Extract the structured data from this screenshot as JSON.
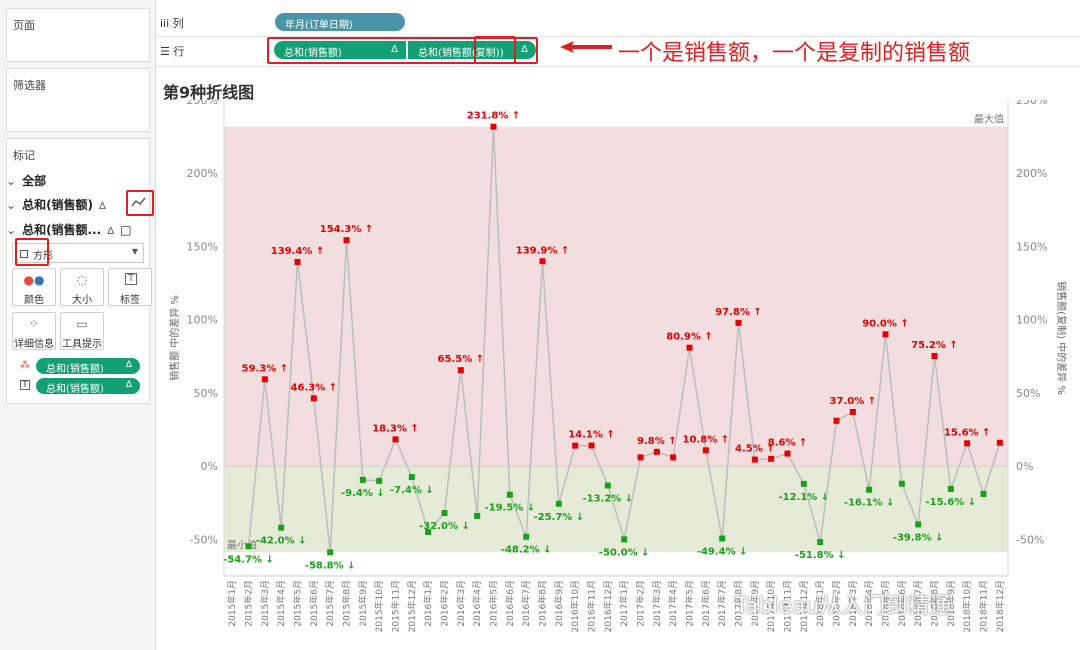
{
  "sidebar": {
    "pages_title": "页面",
    "filters_title": "筛选器",
    "marks_title": "标记",
    "all_label": "全部",
    "mark1_label": "总和(销售额)",
    "mark2_label": "总和(销售额...",
    "delta": "Δ",
    "mark_type": "方形",
    "buttons": [
      "颜色",
      "大小",
      "标签",
      "详细信息",
      "工具提示"
    ],
    "pills": [
      "总和(销售额)",
      "总和(销售额)"
    ]
  },
  "shelves": {
    "columns_label": "iii 列",
    "rows_label": "☰ 行",
    "column_pill": "年月(订单日期)",
    "row_pill1": "总和(销售额)",
    "row_pill2": "总和(销售额(复制))",
    "delta": "Δ"
  },
  "annotation": {
    "arrow_text": "一个是销售额，一个是复制的销售额",
    "color": "#e02020"
  },
  "chart_title": "第9种折线图",
  "watermark": "Tableau从入门到精通",
  "colors": {
    "positive": "#e60000",
    "negative": "#1aa01a",
    "band_positive": "#f2dede",
    "band_negative": "#e6ebd8",
    "line": "#bdbdbd"
  },
  "chart_data": {
    "type": "line",
    "ylabel_left": "销售额 中的差异 %",
    "ylabel_right": "销售额(复制) 中的差异 %",
    "ylim": [
      -75,
      250
    ],
    "yticks": [
      -50,
      0,
      50,
      100,
      150,
      200,
      250
    ],
    "ytick_labels": [
      "-50%",
      "0%",
      "50%",
      "100%",
      "150%",
      "200%",
      "250%"
    ],
    "max_label": "最大值",
    "min_label": "最小值",
    "band_max": 231.8,
    "band_min": -58.8,
    "categories": [
      "2015年1月",
      "2015年2月",
      "2015年3月",
      "2015年4月",
      "2015年5月",
      "2015年6月",
      "2015年7月",
      "2015年8月",
      "2015年9月",
      "2015年10月",
      "2015年11月",
      "2015年12月",
      "2016年1月",
      "2016年2月",
      "2016年3月",
      "2016年4月",
      "2016年5月",
      "2016年6月",
      "2016年7月",
      "2016年8月",
      "2016年9月",
      "2016年10月",
      "2016年11月",
      "2016年12月",
      "2017年1月",
      "2017年2月",
      "2017年3月",
      "2017年4月",
      "2017年5月",
      "2017年6月",
      "2017年7月",
      "2017年8月",
      "2017年9月",
      "2017年10月",
      "2017年11月",
      "2017年12月",
      "2018年1月",
      "2018年2月",
      "2018年3月",
      "2018年4月",
      "2018年5月",
      "2018年6月",
      "2018年7月",
      "2018年8月",
      "2018年9月",
      "2018年10月",
      "2018年11月",
      "2018年12月"
    ],
    "values": [
      null,
      -54.7,
      59.3,
      -42.0,
      139.4,
      46.3,
      -58.8,
      154.3,
      -9.4,
      -10.0,
      18.3,
      -7.4,
      -45.0,
      -32.0,
      65.5,
      -34.0,
      231.8,
      -19.5,
      -48.2,
      139.9,
      -25.7,
      14.0,
      14.1,
      -13.2,
      -50.0,
      6.0,
      9.8,
      6.0,
      80.9,
      10.8,
      -49.4,
      97.8,
      4.5,
      5.0,
      8.6,
      -12.1,
      -51.8,
      31.0,
      37.0,
      -16.1,
      90.0,
      -12.0,
      -39.8,
      75.2,
      -15.6,
      15.6,
      -19.0,
      16.0
    ],
    "labels": [
      null,
      "-54.7% ↓",
      "59.3% ↑",
      "-42.0% ↓",
      "139.4% ↑",
      "46.3% ↑",
      "-58.8% ↓",
      "154.3% ↑",
      "-9.4% ↓",
      null,
      "18.3% ↑",
      "-7.4% ↓",
      null,
      "-32.0% ↓",
      "65.5% ↑",
      null,
      "231.8% ↑",
      "-19.5% ↓",
      "-48.2% ↓",
      "139.9% ↑",
      "-25.7% ↓",
      null,
      "14.1% ↑",
      "-13.2% ↓",
      "-50.0% ↓",
      null,
      "9.8% ↑",
      null,
      "80.9% ↑",
      "10.8% ↑",
      "-49.4% ↓",
      "97.8% ↑",
      "4.5% ↑",
      null,
      "8.6% ↑",
      "-12.1% ↓",
      "-51.8% ↓",
      null,
      "37.0% ↑",
      "-16.1% ↓",
      "90.0% ↑",
      null,
      "-39.8% ↓",
      "75.2% ↑",
      "-15.6% ↓",
      "15.6% ↑",
      null,
      null
    ]
  }
}
